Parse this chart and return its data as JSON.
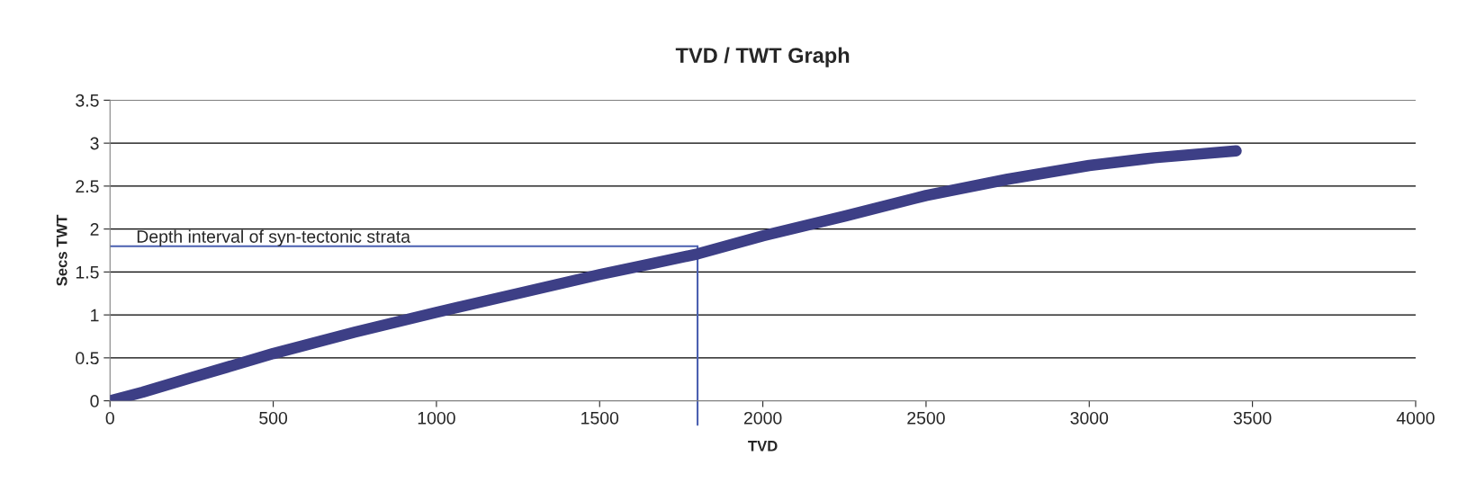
{
  "chart_data": {
    "type": "line",
    "title": "TVD / TWT Graph",
    "xlabel": "TVD",
    "ylabel": "Secs TWT",
    "x": [
      0,
      100,
      250,
      500,
      750,
      1000,
      1250,
      1500,
      1650,
      1800,
      2000,
      2250,
      2500,
      2750,
      3000,
      3200,
      3450
    ],
    "series": [
      {
        "color": "#3d3f86",
        "values": [
          0,
          0.1,
          0.27,
          0.55,
          0.8,
          1.03,
          1.25,
          1.47,
          1.59,
          1.71,
          1.92,
          2.15,
          2.39,
          2.58,
          2.74,
          2.83,
          2.91
        ]
      }
    ],
    "xlim": [
      0,
      4000
    ],
    "xticks": [
      0,
      500,
      1000,
      1500,
      2000,
      2500,
      3000,
      3500,
      4000
    ],
    "ylim": [
      0,
      3.5
    ],
    "yticks": [
      0,
      0.5,
      1,
      1.5,
      2,
      2.5,
      3,
      3.5
    ],
    "grid": "y",
    "line_style": "solid",
    "ref_lines": [
      {
        "axis": "y",
        "value": 1.8,
        "label": "Depth interval of syn-tectonic strata",
        "color": "#4a5fb0"
      },
      {
        "axis": "x",
        "value": 1800,
        "color": "#4a5fb0"
      }
    ]
  }
}
